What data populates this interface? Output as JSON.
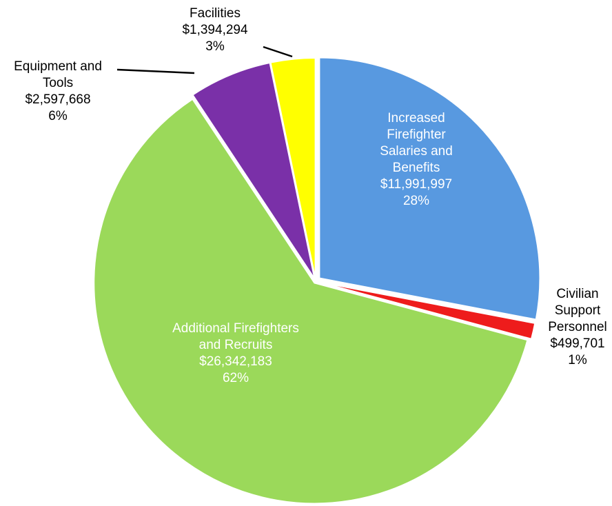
{
  "chart_data": {
    "type": "pie",
    "categories": [
      "Increased Firefighter Salaries and Benefits",
      "Civilian Support Personnel",
      "Additional Firefighters and Recruits",
      "Equipment and Tools",
      "Facilities"
    ],
    "values": [
      11991997,
      499701,
      26342183,
      2597668,
      1394294
    ],
    "value_labels": [
      "$11,991,997",
      "$499,701",
      "$26,342,183",
      "$2,597,668",
      "$1,394,294"
    ],
    "percent_labels": [
      "28%",
      "1%",
      "62%",
      "6%",
      "3%"
    ],
    "colors": [
      "#5899e0",
      "#ee1c1c",
      "#9bd95a",
      "#7a30a8",
      "#ffff00"
    ]
  }
}
